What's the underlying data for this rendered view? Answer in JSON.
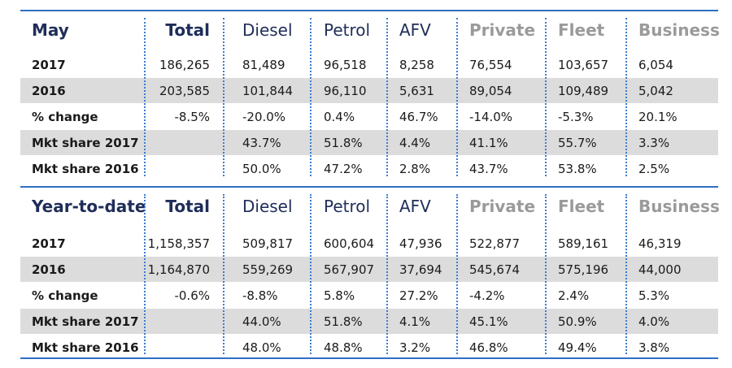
{
  "colors": {
    "rule": "#2e6fc4",
    "dots": "#3a7dd0",
    "header_text": "#1f2d59",
    "header_grey": "#9a9a9a",
    "shade": "#dcdcdc"
  },
  "sections": [
    {
      "header": {
        "title": "May",
        "total": "Total",
        "diesel": "Diesel",
        "petrol": "Petrol",
        "afv": "AFV",
        "private": "Private",
        "fleet": "Fleet",
        "business": "Business"
      },
      "rows": [
        {
          "label": "2017",
          "total": "186,265",
          "diesel": "81,489",
          "petrol": "96,518",
          "afv": "8,258",
          "private": "76,554",
          "fleet": "103,657",
          "business": "6,054"
        },
        {
          "label": "2016",
          "total": "203,585",
          "diesel": "101,844",
          "petrol": "96,110",
          "afv": "5,631",
          "private": "89,054",
          "fleet": "109,489",
          "business": "5,042"
        },
        {
          "label": "% change",
          "total": "-8.5%",
          "diesel": "-20.0%",
          "petrol": "0.4%",
          "afv": "46.7%",
          "private": "-14.0%",
          "fleet": "-5.3%",
          "business": "20.1%"
        },
        {
          "label": "Mkt share 2017",
          "total": "",
          "diesel": "43.7%",
          "petrol": "51.8%",
          "afv": "4.4%",
          "private": "41.1%",
          "fleet": "55.7%",
          "business": "3.3%"
        },
        {
          "label": "Mkt share 2016",
          "total": "",
          "diesel": "50.0%",
          "petrol": "47.2%",
          "afv": "2.8%",
          "private": "43.7%",
          "fleet": "53.8%",
          "business": "2.5%"
        }
      ]
    },
    {
      "header": {
        "title": "Year-to-date",
        "total": "Total",
        "diesel": "Diesel",
        "petrol": "Petrol",
        "afv": "AFV",
        "private": "Private",
        "fleet": "Fleet",
        "business": "Business"
      },
      "rows": [
        {
          "label": "2017",
          "total": "1,158,357",
          "diesel": "509,817",
          "petrol": "600,604",
          "afv": "47,936",
          "private": "522,877",
          "fleet": "589,161",
          "business": "46,319"
        },
        {
          "label": "2016",
          "total": "1,164,870",
          "diesel": "559,269",
          "petrol": "567,907",
          "afv": "37,694",
          "private": "545,674",
          "fleet": "575,196",
          "business": "44,000"
        },
        {
          "label": "% change",
          "total": "-0.6%",
          "diesel": "-8.8%",
          "petrol": "5.8%",
          "afv": "27.2%",
          "private": "-4.2%",
          "fleet": "2.4%",
          "business": "5.3%"
        },
        {
          "label": "Mkt share 2017",
          "total": "",
          "diesel": "44.0%",
          "petrol": "51.8%",
          "afv": "4.1%",
          "private": "45.1%",
          "fleet": "50.9%",
          "business": "4.0%"
        },
        {
          "label": "Mkt share 2016",
          "total": "",
          "diesel": "48.0%",
          "petrol": "48.8%",
          "afv": "3.2%",
          "private": "46.8%",
          "fleet": "49.4%",
          "business": "3.8%"
        }
      ]
    }
  ]
}
